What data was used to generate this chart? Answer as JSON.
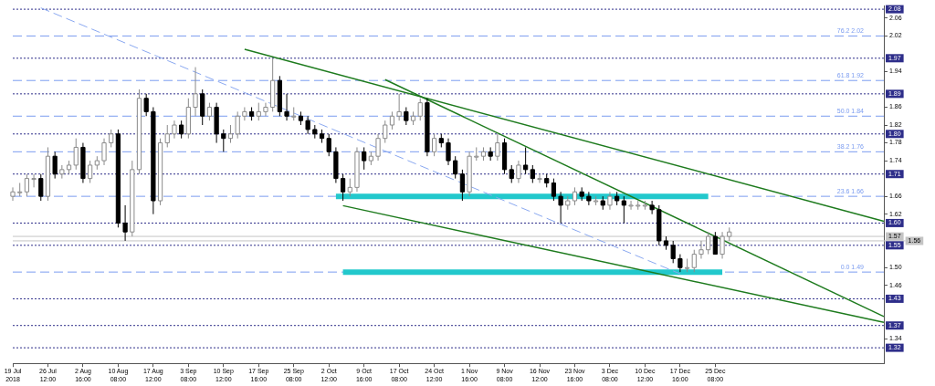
{
  "chart_data": {
    "type": "candlestick",
    "categories": [
      "19 Jul 2018",
      null,
      null,
      null,
      null,
      "26 Jul 12:00",
      null,
      null,
      null,
      null,
      "2 Aug 16:00",
      null,
      null,
      null,
      null,
      "10 Aug 08:00",
      null,
      null,
      null,
      null,
      "17 Aug 12:00",
      null,
      null,
      null,
      null,
      "3 Sep 08:00",
      null,
      null,
      null,
      null,
      "10 Sep 12:00",
      null,
      null,
      null,
      null,
      "17 Sep 16:00",
      null,
      null,
      null,
      null,
      "25 Sep 08:00",
      null,
      null,
      null,
      null,
      "2 Oct 12:00",
      null,
      null,
      null,
      null,
      "9 Oct 16:00",
      null,
      null,
      null,
      null,
      "17 Oct 08:00",
      null,
      null,
      null,
      null,
      "24 Oct 12:00",
      null,
      null,
      null,
      null,
      "1 Nov 16:00",
      null,
      null,
      null,
      null,
      "9 Nov 08:00",
      null,
      null,
      null,
      null,
      "16 Nov 12:00",
      null,
      null,
      null,
      null,
      "23 Nov 16:00",
      null,
      null,
      null,
      null,
      "3 Dec 08:00",
      null,
      null,
      null,
      null,
      "10 Dec 12:00",
      null,
      null,
      null,
      null,
      "17 Dec 16:00",
      null,
      null,
      null,
      null,
      "25 Dec 08:00",
      null,
      null,
      null,
      null,
      null,
      null,
      null,
      null,
      null,
      null,
      null,
      null,
      null,
      null,
      null,
      null,
      null,
      null,
      null,
      null,
      null,
      null,
      null,
      null
    ],
    "ohlc": [
      [
        1.66,
        1.68,
        1.65,
        1.67
      ],
      [
        1.67,
        1.69,
        1.66,
        1.67
      ],
      [
        1.67,
        1.71,
        1.66,
        1.7
      ],
      [
        1.7,
        1.71,
        1.68,
        1.7
      ],
      [
        1.7,
        1.71,
        1.65,
        1.66
      ],
      [
        1.66,
        1.77,
        1.65,
        1.75
      ],
      [
        1.75,
        1.76,
        1.7,
        1.71
      ],
      [
        1.71,
        1.73,
        1.7,
        1.72
      ],
      [
        1.72,
        1.74,
        1.71,
        1.73
      ],
      [
        1.73,
        1.79,
        1.72,
        1.77
      ],
      [
        1.77,
        1.78,
        1.69,
        1.7
      ],
      [
        1.7,
        1.74,
        1.69,
        1.73
      ],
      [
        1.73,
        1.75,
        1.72,
        1.74
      ],
      [
        1.74,
        1.79,
        1.73,
        1.78
      ],
      [
        1.78,
        1.81,
        1.77,
        1.8
      ],
      [
        1.8,
        1.81,
        1.59,
        1.6
      ],
      [
        1.6,
        1.64,
        1.56,
        1.58
      ],
      [
        1.58,
        1.74,
        1.57,
        1.72
      ],
      [
        1.72,
        1.9,
        1.71,
        1.88
      ],
      [
        1.88,
        1.89,
        1.84,
        1.85
      ],
      [
        1.85,
        1.86,
        1.62,
        1.65
      ],
      [
        1.65,
        1.79,
        1.64,
        1.78
      ],
      [
        1.78,
        1.82,
        1.77,
        1.8
      ],
      [
        1.8,
        1.83,
        1.79,
        1.82
      ],
      [
        1.82,
        1.83,
        1.79,
        1.8
      ],
      [
        1.8,
        1.88,
        1.79,
        1.86
      ],
      [
        1.86,
        1.95,
        1.84,
        1.89
      ],
      [
        1.89,
        1.9,
        1.82,
        1.84
      ],
      [
        1.84,
        1.87,
        1.83,
        1.86
      ],
      [
        1.86,
        1.87,
        1.78,
        1.8
      ],
      [
        1.8,
        1.81,
        1.76,
        1.79
      ],
      [
        1.79,
        1.82,
        1.78,
        1.8
      ],
      [
        1.8,
        1.85,
        1.79,
        1.84
      ],
      [
        1.84,
        1.86,
        1.83,
        1.85
      ],
      [
        1.85,
        1.86,
        1.83,
        1.84
      ],
      [
        1.84,
        1.87,
        1.83,
        1.85
      ],
      [
        1.85,
        1.87,
        1.84,
        1.86
      ],
      [
        1.86,
        1.97,
        1.85,
        1.92
      ],
      [
        1.92,
        1.93,
        1.84,
        1.85
      ],
      [
        1.85,
        1.89,
        1.83,
        1.84
      ],
      [
        1.84,
        1.86,
        1.83,
        1.84
      ],
      [
        1.84,
        1.85,
        1.82,
        1.83
      ],
      [
        1.83,
        1.84,
        1.8,
        1.81
      ],
      [
        1.81,
        1.82,
        1.79,
        1.8
      ],
      [
        1.8,
        1.81,
        1.78,
        1.79
      ],
      [
        1.79,
        1.8,
        1.75,
        1.76
      ],
      [
        1.76,
        1.77,
        1.69,
        1.7
      ],
      [
        1.7,
        1.71,
        1.65,
        1.67
      ],
      [
        1.67,
        1.7,
        1.66,
        1.68
      ],
      [
        1.68,
        1.77,
        1.67,
        1.76
      ],
      [
        1.76,
        1.77,
        1.72,
        1.74
      ],
      [
        1.74,
        1.76,
        1.73,
        1.75
      ],
      [
        1.75,
        1.8,
        1.74,
        1.79
      ],
      [
        1.79,
        1.83,
        1.78,
        1.82
      ],
      [
        1.82,
        1.85,
        1.81,
        1.84
      ],
      [
        1.84,
        1.89,
        1.83,
        1.85
      ],
      [
        1.85,
        1.86,
        1.82,
        1.83
      ],
      [
        1.83,
        1.85,
        1.82,
        1.84
      ],
      [
        1.84,
        1.88,
        1.83,
        1.87
      ],
      [
        1.87,
        1.88,
        1.75,
        1.76
      ],
      [
        1.76,
        1.8,
        1.75,
        1.79
      ],
      [
        1.79,
        1.8,
        1.77,
        1.78
      ],
      [
        1.78,
        1.79,
        1.73,
        1.74
      ],
      [
        1.74,
        1.75,
        1.7,
        1.71
      ],
      [
        1.71,
        1.72,
        1.65,
        1.67
      ],
      [
        1.67,
        1.76,
        1.66,
        1.75
      ],
      [
        1.75,
        1.77,
        1.74,
        1.75
      ],
      [
        1.75,
        1.77,
        1.74,
        1.76
      ],
      [
        1.76,
        1.77,
        1.74,
        1.75
      ],
      [
        1.75,
        1.8,
        1.74,
        1.78
      ],
      [
        1.78,
        1.79,
        1.71,
        1.72
      ],
      [
        1.72,
        1.73,
        1.69,
        1.7
      ],
      [
        1.7,
        1.74,
        1.69,
        1.73
      ],
      [
        1.73,
        1.77,
        1.71,
        1.72
      ],
      [
        1.72,
        1.73,
        1.69,
        1.7
      ],
      [
        1.7,
        1.71,
        1.69,
        1.7
      ],
      [
        1.7,
        1.71,
        1.68,
        1.69
      ],
      [
        1.69,
        1.7,
        1.65,
        1.66
      ],
      [
        1.66,
        1.67,
        1.6,
        1.64
      ],
      [
        1.64,
        1.66,
        1.63,
        1.65
      ],
      [
        1.65,
        1.68,
        1.64,
        1.67
      ],
      [
        1.67,
        1.68,
        1.65,
        1.66
      ],
      [
        1.66,
        1.67,
        1.64,
        1.65
      ],
      [
        1.65,
        1.66,
        1.64,
        1.65
      ],
      [
        1.65,
        1.66,
        1.63,
        1.64
      ],
      [
        1.64,
        1.67,
        1.63,
        1.66
      ],
      [
        1.66,
        1.67,
        1.64,
        1.65
      ],
      [
        1.65,
        1.66,
        1.6,
        1.64
      ],
      [
        1.64,
        1.65,
        1.63,
        1.64
      ],
      [
        1.64,
        1.65,
        1.63,
        1.64
      ],
      [
        1.64,
        1.65,
        1.63,
        1.64
      ],
      [
        1.64,
        1.65,
        1.62,
        1.63
      ],
      [
        1.63,
        1.64,
        1.55,
        1.56
      ],
      [
        1.56,
        1.57,
        1.54,
        1.55
      ],
      [
        1.55,
        1.56,
        1.51,
        1.52
      ],
      [
        1.52,
        1.53,
        1.49,
        1.5
      ],
      [
        1.5,
        1.52,
        1.49,
        1.5
      ],
      [
        1.5,
        1.54,
        1.49,
        1.53
      ],
      [
        1.53,
        1.56,
        1.52,
        1.54
      ],
      [
        1.54,
        1.58,
        1.53,
        1.57
      ],
      [
        1.57,
        1.58,
        1.53,
        1.53
      ],
      [
        1.53,
        1.58,
        1.52,
        1.57
      ],
      [
        1.57,
        1.59,
        1.56,
        1.58
      ],
      null,
      null,
      null,
      null,
      null,
      null,
      null,
      null,
      null,
      null,
      null,
      null,
      null,
      null,
      null,
      null,
      null,
      null,
      null,
      null,
      null,
      null
    ],
    "series": [
      {
        "type": "line",
        "color": "#1e7b1e",
        "line_style": "solid",
        "values": [
          null,
          null,
          null,
          null,
          null,
          null,
          null,
          null,
          null,
          null,
          null,
          null,
          null,
          null,
          null,
          null,
          null,
          null,
          null,
          null,
          null,
          null,
          null,
          null,
          null,
          null,
          null,
          null,
          null,
          null,
          null,
          null,
          null,
          1.99,
          null,
          null,
          null,
          null,
          null,
          null,
          null,
          null,
          null,
          null,
          null,
          null,
          null,
          null,
          null,
          null,
          null,
          null,
          null,
          null,
          null,
          null,
          null,
          null,
          null,
          null,
          null,
          null,
          null,
          null,
          null,
          null,
          null,
          null,
          null,
          null,
          null,
          null,
          null,
          null,
          null,
          null,
          null,
          null,
          null,
          null,
          null,
          null,
          null,
          null,
          null,
          null,
          null,
          null,
          null,
          null,
          null,
          null,
          null,
          null,
          null,
          null,
          null,
          null,
          null,
          null,
          null,
          null,
          null,
          null,
          null,
          null,
          null,
          null,
          null,
          null,
          null,
          null,
          null,
          null,
          null,
          null,
          null,
          null,
          null,
          null,
          null,
          null,
          null,
          null,
          1.604
        ]
      },
      {
        "type": "line",
        "color": "#1e7b1e",
        "line_style": "solid",
        "values": [
          null,
          null,
          null,
          null,
          null,
          null,
          null,
          null,
          null,
          null,
          null,
          null,
          null,
          null,
          null,
          null,
          null,
          null,
          null,
          null,
          null,
          null,
          null,
          null,
          null,
          null,
          null,
          null,
          null,
          null,
          null,
          null,
          null,
          null,
          null,
          null,
          null,
          null,
          null,
          null,
          null,
          null,
          null,
          null,
          null,
          null,
          null,
          null,
          null,
          null,
          null,
          null,
          null,
          1.922,
          null,
          null,
          null,
          null,
          null,
          null,
          null,
          null,
          null,
          null,
          null,
          null,
          null,
          null,
          null,
          null,
          null,
          null,
          null,
          null,
          null,
          null,
          null,
          null,
          null,
          null,
          null,
          null,
          null,
          null,
          null,
          null,
          null,
          null,
          null,
          null,
          null,
          null,
          null,
          null,
          null,
          null,
          null,
          null,
          null,
          null,
          null,
          null,
          null,
          null,
          null,
          null,
          null,
          null,
          null,
          null,
          null,
          null,
          null,
          null,
          null,
          null,
          null,
          null,
          null,
          null,
          null,
          null,
          null,
          null,
          1.39
        ]
      },
      {
        "type": "line",
        "color": "#1e7b1e",
        "line_style": "solid",
        "values": [
          null,
          null,
          null,
          null,
          null,
          null,
          null,
          null,
          null,
          null,
          null,
          null,
          null,
          null,
          null,
          null,
          null,
          null,
          null,
          null,
          null,
          null,
          null,
          null,
          null,
          null,
          null,
          null,
          null,
          null,
          null,
          null,
          null,
          null,
          null,
          null,
          null,
          null,
          null,
          null,
          null,
          null,
          null,
          null,
          null,
          null,
          null,
          1.639,
          null,
          null,
          null,
          null,
          null,
          null,
          null,
          null,
          null,
          null,
          null,
          null,
          null,
          null,
          null,
          null,
          null,
          null,
          null,
          null,
          null,
          null,
          null,
          null,
          null,
          null,
          null,
          null,
          null,
          null,
          null,
          null,
          null,
          null,
          null,
          null,
          null,
          null,
          null,
          null,
          null,
          null,
          null,
          null,
          null,
          null,
          null,
          null,
          null,
          null,
          null,
          null,
          null,
          null,
          null,
          null,
          null,
          null,
          null,
          null,
          null,
          null,
          null,
          null,
          null,
          null,
          null,
          null,
          null,
          null,
          null,
          null,
          null,
          null,
          null,
          null,
          1.377
        ]
      },
      {
        "type": "line",
        "color": "#8aa8f0",
        "line_style": "dashed",
        "values": [
          null,
          null,
          null,
          null,
          2.083,
          null,
          null,
          null,
          null,
          null,
          null,
          null,
          null,
          null,
          null,
          null,
          null,
          null,
          null,
          null,
          null,
          null,
          null,
          null,
          null,
          null,
          null,
          null,
          null,
          null,
          null,
          null,
          null,
          null,
          null,
          null,
          null,
          null,
          null,
          null,
          null,
          null,
          null,
          null,
          null,
          null,
          null,
          null,
          null,
          null,
          null,
          null,
          null,
          null,
          null,
          null,
          null,
          null,
          null,
          null,
          null,
          null,
          null,
          null,
          null,
          null,
          null,
          null,
          null,
          null,
          null,
          null,
          null,
          null,
          null,
          null,
          null,
          null,
          null,
          null,
          null,
          null,
          null,
          null,
          null,
          null,
          null,
          null,
          null,
          null,
          null,
          null,
          null,
          null,
          null,
          1.486,
          null,
          null,
          null,
          null,
          null,
          null,
          null,
          null,
          null,
          null,
          null,
          null,
          null,
          null,
          null,
          null,
          null,
          null,
          null,
          null,
          null,
          null,
          null,
          null,
          null,
          null,
          null,
          null,
          null
        ]
      },
      {
        "type": "line",
        "color": "#22c8cc",
        "line_style": "solid",
        "values": [
          null,
          null,
          null,
          null,
          null,
          null,
          null,
          null,
          null,
          null,
          null,
          null,
          null,
          null,
          null,
          null,
          null,
          null,
          null,
          null,
          null,
          null,
          null,
          null,
          null,
          null,
          null,
          null,
          null,
          null,
          null,
          null,
          null,
          null,
          null,
          null,
          null,
          null,
          null,
          null,
          null,
          null,
          null,
          null,
          null,
          null,
          1.66,
          null,
          null,
          null,
          null,
          null,
          null,
          null,
          null,
          null,
          null,
          null,
          null,
          null,
          null,
          null,
          null,
          null,
          null,
          null,
          null,
          null,
          null,
          null,
          null,
          null,
          null,
          null,
          null,
          null,
          null,
          null,
          null,
          null,
          null,
          null,
          null,
          null,
          null,
          null,
          null,
          null,
          null,
          null,
          null,
          null,
          null,
          null,
          null,
          null,
          null,
          null,
          null,
          1.66,
          null,
          null,
          null,
          null,
          null,
          null,
          null,
          null,
          null,
          null,
          null,
          null,
          null,
          null,
          null,
          null,
          null,
          null,
          null,
          null,
          null,
          null,
          null,
          null,
          null
        ]
      },
      {
        "type": "line",
        "color": "#22c8cc",
        "line_style": "solid",
        "values": [
          null,
          null,
          null,
          null,
          null,
          null,
          null,
          null,
          null,
          null,
          null,
          null,
          null,
          null,
          null,
          null,
          null,
          null,
          null,
          null,
          null,
          null,
          null,
          null,
          null,
          null,
          null,
          null,
          null,
          null,
          null,
          null,
          null,
          null,
          null,
          null,
          null,
          null,
          null,
          null,
          null,
          null,
          null,
          null,
          null,
          null,
          null,
          1.49,
          null,
          null,
          null,
          null,
          null,
          null,
          null,
          null,
          null,
          null,
          null,
          null,
          null,
          null,
          null,
          null,
          null,
          null,
          null,
          null,
          null,
          null,
          null,
          null,
          null,
          null,
          null,
          null,
          null,
          null,
          null,
          null,
          null,
          null,
          null,
          null,
          null,
          null,
          null,
          null,
          null,
          null,
          null,
          null,
          null,
          null,
          null,
          null,
          null,
          null,
          null,
          null,
          null,
          1.49,
          null,
          null,
          null,
          null,
          null,
          null,
          null,
          null,
          null,
          null,
          null,
          null,
          null,
          null,
          null,
          null,
          null,
          null,
          null,
          null,
          null,
          null,
          null
        ]
      }
    ],
    "ref_lines": [
      {
        "axis": "y",
        "value": 2.08,
        "label": "2.08",
        "color": "#2e2e8a",
        "line_style": "dotted"
      },
      {
        "axis": "y",
        "value": 1.97,
        "label": "1.97",
        "color": "#2e2e8a",
        "line_style": "dotted"
      },
      {
        "axis": "y",
        "value": 1.89,
        "label": "1.89",
        "color": "#2e2e8a",
        "line_style": "dotted"
      },
      {
        "axis": "y",
        "value": 1.8,
        "label": "1.80",
        "color": "#2e2e8a",
        "line_style": "dotted"
      },
      {
        "axis": "y",
        "value": 1.71,
        "label": "1.71",
        "color": "#2e2e8a",
        "line_style": "dotted"
      },
      {
        "axis": "y",
        "value": 1.6,
        "label": "1.60",
        "color": "#2e2e8a",
        "line_style": "dotted"
      },
      {
        "axis": "y",
        "value": 1.55,
        "label": "1.55",
        "color": "#2e2e8a",
        "line_style": "dotted"
      },
      {
        "axis": "y",
        "value": 1.43,
        "label": "1.43",
        "color": "#2e2e8a",
        "line_style": "dotted"
      },
      {
        "axis": "y",
        "value": 1.37,
        "label": "1.37",
        "color": "#2e2e8a",
        "line_style": "dotted"
      },
      {
        "axis": "y",
        "value": 1.32,
        "label": "1.32",
        "color": "#2e2e8a",
        "line_style": "dotted"
      },
      {
        "axis": "y",
        "value": 2.02,
        "label": "76.2 2.02",
        "color": "#7b9cf0",
        "line_style": "dashed"
      },
      {
        "axis": "y",
        "value": 1.92,
        "label": "61.8 1.92",
        "color": "#7b9cf0",
        "line_style": "dashed"
      },
      {
        "axis": "y",
        "value": 1.84,
        "label": "50.0 1.84",
        "color": "#7b9cf0",
        "line_style": "dashed"
      },
      {
        "axis": "y",
        "value": 1.76,
        "label": "38.2 1.76",
        "color": "#7b9cf0",
        "line_style": "dashed"
      },
      {
        "axis": "y",
        "value": 1.66,
        "label": "23.6 1.66",
        "color": "#7b9cf0",
        "line_style": "dashed"
      },
      {
        "axis": "y",
        "value": 1.49,
        "label": "0.0 1.49",
        "color": "#7b9cf0",
        "line_style": "dashed"
      },
      {
        "axis": "y",
        "value": 1.57,
        "label": "1.57",
        "color": "#c4c4c4",
        "line_style": "solid"
      },
      {
        "axis": "y",
        "value": 1.56,
        "label": "1.56",
        "color": "#c4c4c4",
        "line_style": "solid"
      }
    ],
    "ylim": [
      1.285,
      2.088
    ],
    "yticks": [
      1.34,
      1.46,
      {
        "value": 1.5,
        "label": "1.50"
      },
      1.62,
      1.66,
      1.74,
      1.78,
      1.82,
      1.86,
      1.94,
      2.02,
      2.06
    ],
    "grid": false
  }
}
